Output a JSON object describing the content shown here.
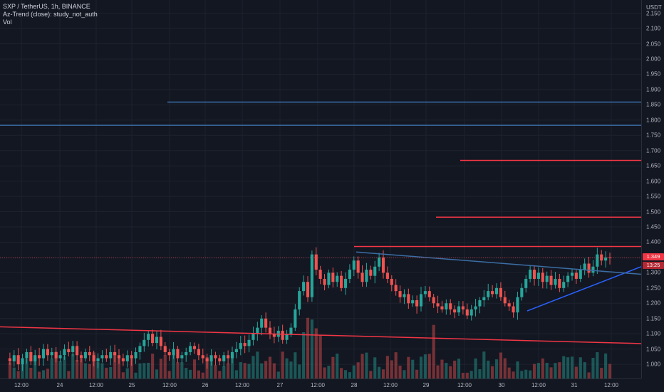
{
  "legend": {
    "symbol_line": "SXP / TetherUS, 1h, BINANCE",
    "indicator_line": "Az-Trend (close): study_not_auth",
    "volume_line": "Vol"
  },
  "price_axis": {
    "currency": "USDT",
    "ticks": [
      "2.150",
      "2.100",
      "2.050",
      "2.000",
      "1.950",
      "1.900",
      "1.850",
      "1.800",
      "1.750",
      "1.700",
      "1.650",
      "1.600",
      "1.550",
      "1.500",
      "1.450",
      "1.400",
      "1.350",
      "1.300",
      "1.250",
      "1.200",
      "1.150",
      "1.100",
      "1.050",
      "1.000"
    ],
    "last_price_badge": "1.349",
    "countdown_badge": "13:25"
  },
  "time_axis": {
    "ticks": [
      "12:00",
      "24",
      "12:00",
      "25",
      "12:00",
      "26",
      "12:00",
      "27",
      "12:00",
      "28",
      "12:00",
      "29",
      "12:00",
      "30",
      "12:00",
      "31",
      "12:00"
    ]
  },
  "colors": {
    "background": "#131722",
    "up": "#26a69a",
    "down": "#ef5350",
    "line_red": "#f23645",
    "line_blue": "#2962ff",
    "line_steel": "#3b6ea5"
  },
  "chart_data": {
    "type": "candlestick",
    "symbol": "SXP / TetherUS, 1h, BINANCE",
    "ylim": [
      0.97,
      2.17
    ],
    "current_price": 1.349,
    "trend_lines": [
      {
        "color": "line_red",
        "from": 1.123,
        "to": 1.068,
        "note": "descending support"
      },
      {
        "color": "line_red",
        "from": 1.386,
        "to": 1.386
      },
      {
        "color": "line_red",
        "from": 1.482,
        "to": 1.482
      },
      {
        "color": "line_red",
        "from": 1.668,
        "to": 1.668
      },
      {
        "color": "line_steel",
        "from": 1.783,
        "to": 1.783
      },
      {
        "color": "line_steel",
        "from": 1.859,
        "to": 1.859
      },
      {
        "color": "line_blue",
        "from": 1.175,
        "to": 1.32,
        "note": "rising trendline"
      },
      {
        "color": "line_steel",
        "from": 1.368,
        "to": 1.295,
        "note": "falling resistance"
      }
    ],
    "price_path": [
      1.02,
      1.01,
      1.03,
      1.0,
      1.02,
      1.04,
      1.01,
      1.03,
      1.02,
      1.05,
      1.03,
      1.04,
      1.02,
      1.03,
      1.05,
      1.04,
      1.06,
      1.03,
      1.02,
      1.04,
      1.03,
      1.01,
      1.02,
      1.03,
      1.02,
      1.04,
      1.03,
      1.02,
      1.01,
      1.03,
      1.02,
      1.04,
      1.06,
      1.08,
      1.1,
      1.07,
      1.09,
      1.06,
      1.04,
      1.03,
      1.05,
      1.02,
      1.03,
      1.04,
      1.06,
      1.05,
      1.03,
      1.02,
      1.01,
      1.03,
      1.02,
      1.01,
      1.03,
      1.02,
      1.04,
      1.05,
      1.07,
      1.06,
      1.08,
      1.1,
      1.12,
      1.15,
      1.12,
      1.1,
      1.09,
      1.11,
      1.08,
      1.1,
      1.12,
      1.18,
      1.24,
      1.27,
      1.22,
      1.36,
      1.31,
      1.28,
      1.26,
      1.3,
      1.27,
      1.29,
      1.25,
      1.28,
      1.31,
      1.34,
      1.3,
      1.27,
      1.31,
      1.29,
      1.32,
      1.35,
      1.3,
      1.28,
      1.26,
      1.24,
      1.22,
      1.23,
      1.2,
      1.21,
      1.19,
      1.23,
      1.24,
      1.22,
      1.2,
      1.19,
      1.18,
      1.2,
      1.18,
      1.17,
      1.19,
      1.18,
      1.16,
      1.18,
      1.19,
      1.21,
      1.22,
      1.24,
      1.23,
      1.25,
      1.22,
      1.2,
      1.19,
      1.17,
      1.22,
      1.25,
      1.28,
      1.31,
      1.28,
      1.3,
      1.27,
      1.29,
      1.26,
      1.28,
      1.25,
      1.27,
      1.29,
      1.3,
      1.28,
      1.31,
      1.33,
      1.3,
      1.32,
      1.36,
      1.34,
      1.35,
      1.349
    ]
  }
}
